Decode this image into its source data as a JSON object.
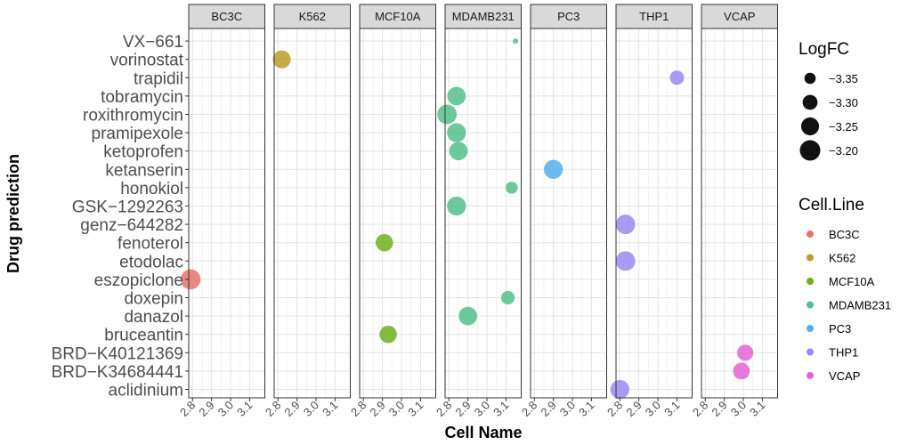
{
  "chart_data": {
    "type": "scatter",
    "xlabel": "Cell Name",
    "ylabel": "Drug prediction",
    "facets": [
      "BC3C",
      "K562",
      "MCF10A",
      "MDAMB231",
      "PC3",
      "THP1",
      "VCAP"
    ],
    "xlim": [
      2.78,
      3.18
    ],
    "xticks": [
      2.8,
      2.9,
      3.0,
      3.1
    ],
    "xtick_labels": [
      "2.8",
      "2.9",
      "3.0",
      "3.1"
    ],
    "drugs": [
      "aclidinium",
      "BRD−K34684441",
      "BRD−K40121369",
      "bruceantin",
      "danazol",
      "doxepin",
      "eszopiclone",
      "etodolac",
      "fenoterol",
      "genz−644282",
      "GSK−1292263",
      "honokiol",
      "ketanserin",
      "ketoprofen",
      "pramipexole",
      "roxithromycin",
      "tobramycin",
      "trapidil",
      "vorinostat",
      "VX−661"
    ],
    "grid": true,
    "size_legend": {
      "title": "LogFC",
      "values": [
        -3.35,
        -3.3,
        -3.25,
        -3.2
      ],
      "labels": [
        "−3.35",
        "−3.30",
        "−3.25",
        "−3.20"
      ]
    },
    "color_legend": {
      "title": "Cell.Line",
      "items": [
        {
          "label": "BC3C",
          "color": "#E8736C"
        },
        {
          "label": "K562",
          "color": "#BB9D2A"
        },
        {
          "label": "MCF10A",
          "color": "#6EAF1E"
        },
        {
          "label": "MDAMB231",
          "color": "#55BE8C"
        },
        {
          "label": "PC3",
          "color": "#52AEEB"
        },
        {
          "label": "THP1",
          "color": "#9A89EE"
        },
        {
          "label": "VCAP",
          "color": "#E463D5"
        }
      ]
    },
    "points": [
      {
        "cell": "BC3C",
        "drug": "eszopiclone",
        "x": 2.79,
        "logfc": -3.21
      },
      {
        "cell": "K562",
        "drug": "vorinostat",
        "x": 2.82,
        "logfc": -3.25
      },
      {
        "cell": "MCF10A",
        "drug": "fenoterol",
        "x": 2.91,
        "logfc": -3.26
      },
      {
        "cell": "MCF10A",
        "drug": "bruceantin",
        "x": 2.93,
        "logfc": -3.26
      },
      {
        "cell": "MDAMB231",
        "drug": "VX−661",
        "x": 3.15,
        "logfc": -3.4
      },
      {
        "cell": "MDAMB231",
        "drug": "tobramycin",
        "x": 2.84,
        "logfc": -3.24
      },
      {
        "cell": "MDAMB231",
        "drug": "roxithromycin",
        "x": 2.79,
        "logfc": -3.22
      },
      {
        "cell": "MDAMB231",
        "drug": "pramipexole",
        "x": 2.84,
        "logfc": -3.23
      },
      {
        "cell": "MDAMB231",
        "drug": "ketoprofen",
        "x": 2.85,
        "logfc": -3.24
      },
      {
        "cell": "MDAMB231",
        "drug": "honokiol",
        "x": 3.13,
        "logfc": -3.34
      },
      {
        "cell": "MDAMB231",
        "drug": "GSK−1292263",
        "x": 2.84,
        "logfc": -3.23
      },
      {
        "cell": "MDAMB231",
        "drug": "doxepin",
        "x": 3.11,
        "logfc": -3.32
      },
      {
        "cell": "MDAMB231",
        "drug": "danazol",
        "x": 2.9,
        "logfc": -3.24
      },
      {
        "cell": "PC3",
        "drug": "ketanserin",
        "x": 2.9,
        "logfc": -3.23
      },
      {
        "cell": "THP1",
        "drug": "trapidil",
        "x": 3.1,
        "logfc": -3.31
      },
      {
        "cell": "THP1",
        "drug": "genz−644282",
        "x": 2.83,
        "logfc": -3.22
      },
      {
        "cell": "THP1",
        "drug": "etodolac",
        "x": 2.83,
        "logfc": -3.22
      },
      {
        "cell": "THP1",
        "drug": "aclidinium",
        "x": 2.8,
        "logfc": -3.23
      },
      {
        "cell": "VCAP",
        "drug": "BRD−K40121369",
        "x": 3.01,
        "logfc": -3.28
      },
      {
        "cell": "VCAP",
        "drug": "BRD−K34684441",
        "x": 2.99,
        "logfc": -3.27
      }
    ]
  }
}
